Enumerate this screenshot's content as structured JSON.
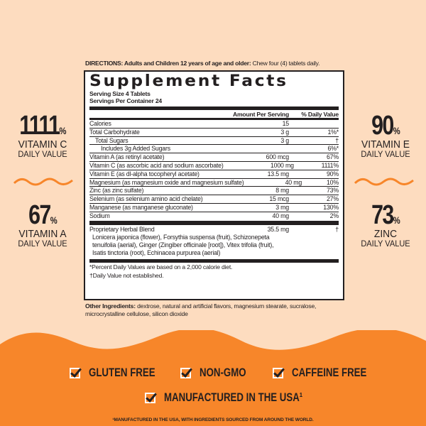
{
  "directions": {
    "label": "DIRECTIONS: Adults and Children 12 years of age and older:",
    "text": " Chew four (4) tablets daily."
  },
  "facts": {
    "title": "Supplement Facts",
    "serving_size": "Serving Size 4 Tablets",
    "servings_per_container": "Servings Per Container 24",
    "header": {
      "amount": "Amount Per Serving",
      "dv": "% Daily Value"
    },
    "rows": [
      {
        "name": "Calories",
        "amount": "15",
        "dv": ""
      },
      {
        "name": "Total Carbohydrate",
        "amount": "3 g",
        "dv": "1%*"
      },
      {
        "name": "Total Sugars",
        "amount": "3 g",
        "dv": "†"
      },
      {
        "name": "Includes 3g Added Sugars",
        "amount": "",
        "dv": "6%*"
      },
      {
        "name": "Vitamin A (as retinyl acetate)",
        "amount": "600 mcg",
        "dv": "67%"
      },
      {
        "name": "Vitamin C (as ascorbic acid and sodium ascorbate)",
        "amount": "1000 mg",
        "dv": "1111%"
      },
      {
        "name": "Vitamin E (as dl-alpha tocopheryl acetate)",
        "amount": "13.5 mg",
        "dv": "90%"
      },
      {
        "name": "Magnesium (as magnesium oxide and magnesium sulfate)",
        "amount": "40 mg",
        "dv": "10%"
      },
      {
        "name": "Zinc (as zinc sulfate)",
        "amount": "8 mg",
        "dv": "73%"
      },
      {
        "name": "Selenium (as selenium amino acid chelate)",
        "amount": "15 mcg",
        "dv": "27%"
      },
      {
        "name": "Manganese (as manganese gluconate)",
        "amount": "3 mg",
        "dv": "130%"
      },
      {
        "name": "Sodium",
        "amount": "40 mg",
        "dv": "2%"
      }
    ],
    "blend": {
      "name": "Proprietary Herbal Blend",
      "amount": "35.5 mg",
      "dv": "†",
      "ingredients": "Lonicera japonica (flower), Forsythia suspensa (fruit), Schizonepeta tenuifolia (aerial), Ginger (Zingiber officinale [root]), Vitex trifolia (fruit), Isatis tinctoria (root), Echinacea purpurea (aerial)"
    },
    "note1": "*Percent Daily Values are based on a 2,000 calorie diet.",
    "note2": "†Daily Value not established."
  },
  "other_ingredients": {
    "label": "Other Ingredients:",
    "text": " dextrose, natural and artificial flavors, magnesium stearate, sucralose, microcrystalline cellulose, silicon dioxide"
  },
  "callouts": [
    {
      "value": "1111",
      "unit": "%",
      "name": "VITAMIN C",
      "sub": "DAILY VALUE"
    },
    {
      "value": "67",
      "unit": "%",
      "name": "VITAMIN A",
      "sub": "DAILY VALUE"
    },
    {
      "value": "90",
      "unit": "%",
      "name": "VITAMIN E",
      "sub": "DAILY VALUE"
    },
    {
      "value": "73",
      "unit": "%",
      "name": "ZINC",
      "sub": "DAILY VALUE"
    }
  ],
  "badges": [
    "GLUTEN FREE",
    "NON-GMO",
    "CAFFEINE FREE",
    "MANUFACTURED IN THE USA¹"
  ],
  "footnote": "¹MANUFACTURED IN THE USA, WITH INGREDIENTS SOURCED FROM AROUND THE WORLD.",
  "colors": {
    "background": "#fddcbf",
    "orange": "#f7862a",
    "text": "#231f20"
  }
}
